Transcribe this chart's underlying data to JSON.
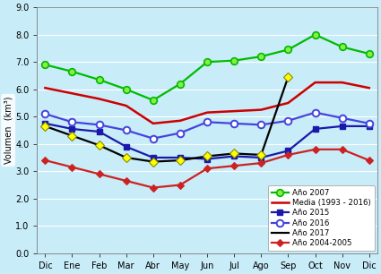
{
  "months": [
    "Dic",
    "Ene",
    "Feb",
    "Mar",
    "Abr",
    "May",
    "Jun",
    "Jul",
    "Ago",
    "Sep",
    "Oct",
    "Nov",
    "Dic"
  ],
  "anio2007": [
    6.9,
    6.65,
    6.35,
    6.0,
    5.6,
    6.2,
    7.0,
    7.05,
    7.2,
    7.45,
    8.0,
    7.55,
    7.3
  ],
  "media": [
    6.05,
    5.85,
    5.65,
    5.4,
    4.75,
    4.85,
    5.15,
    5.2,
    5.25,
    5.5,
    6.25,
    6.25,
    6.05
  ],
  "anio2015": [
    4.75,
    4.55,
    4.45,
    3.9,
    3.5,
    3.5,
    3.45,
    3.55,
    3.5,
    3.75,
    4.55,
    4.65,
    4.65
  ],
  "anio2016": [
    5.1,
    4.8,
    4.7,
    4.5,
    4.2,
    4.4,
    4.8,
    4.75,
    4.7,
    4.85,
    5.15,
    4.95,
    4.75
  ],
  "anio2017": [
    4.65,
    4.3,
    3.95,
    3.5,
    3.35,
    3.4,
    3.55,
    3.65,
    3.6,
    6.45,
    null,
    null,
    null
  ],
  "anio20042005": [
    3.4,
    3.15,
    2.9,
    2.65,
    2.4,
    2.5,
    3.1,
    3.2,
    3.3,
    3.6,
    3.8,
    3.8,
    3.4
  ],
  "ylim": [
    0.0,
    9.0
  ],
  "yticks": [
    0.0,
    1.0,
    2.0,
    3.0,
    4.0,
    5.0,
    6.0,
    7.0,
    8.0,
    9.0
  ],
  "ylabel": "Volumen  (km³)",
  "bg_color_top": "#8dd8ef",
  "bg_color_bottom": "#c8ecf8",
  "legend_bg": "#ffffff",
  "colors": {
    "anio2007": "#00bb00",
    "media": "#cc0000",
    "anio2015": "#1a1aaa",
    "anio2016": "#4444dd",
    "anio2017": "#000000",
    "anio20042005": "#cc2222"
  },
  "labels": {
    "anio2007": "Año 2007",
    "media": "Media (1993 - 2016)",
    "anio2015": "Año 2015",
    "anio2016": "Año 2016",
    "anio2017": "Año 2017",
    "anio20042005": "Año 2004-2005"
  }
}
